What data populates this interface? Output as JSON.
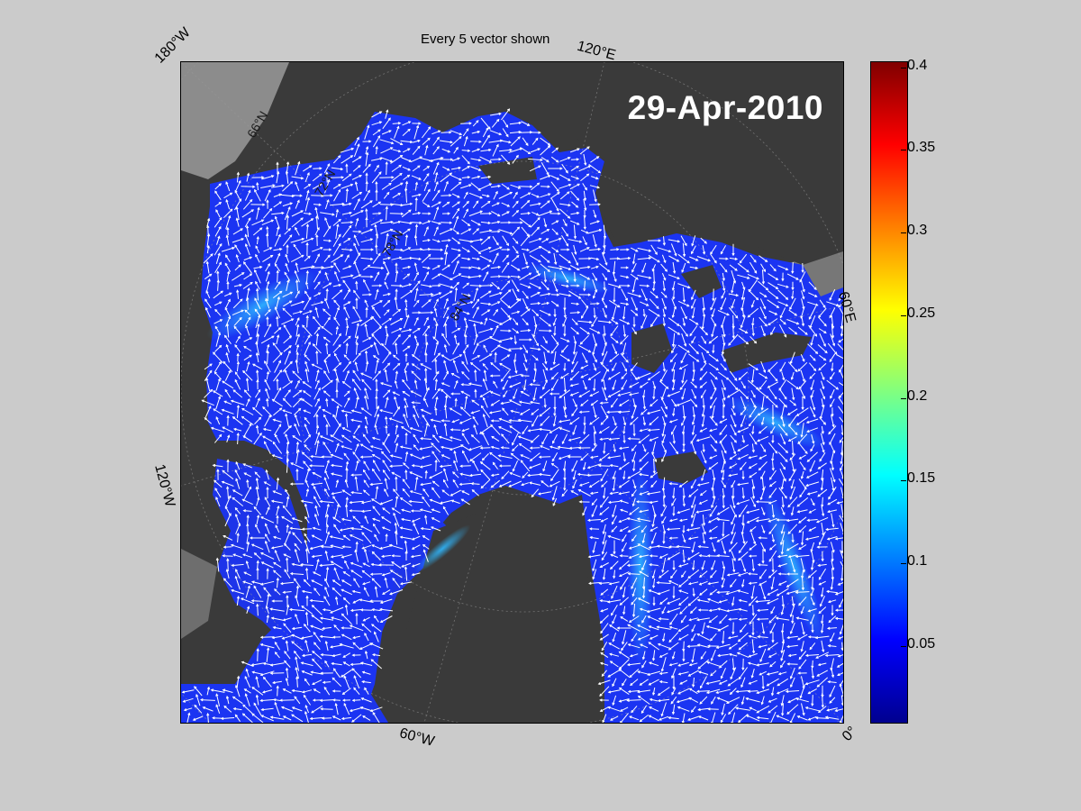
{
  "title": "Every 5 vector shown",
  "date": "29-Apr-2010",
  "rim_labels": {
    "top_left": "180°W",
    "top_right": "120°E",
    "right": "60°E",
    "left": "120°W",
    "bottom": "60°W",
    "bottom_right": "0°"
  },
  "inner_labels": {
    "lat_66": "66°N",
    "lat_72": "72°N",
    "lat_78": "78°N",
    "lat_84": "84°N"
  },
  "colorbar": {
    "ticks": [
      "0.4",
      "0.35",
      "0.3",
      "0.25",
      "0.2",
      "0.15",
      "0.1",
      "0.05"
    ],
    "range": [
      0,
      0.4
    ],
    "colormap": "jet"
  },
  "colors": {
    "background": "#cbcbcb",
    "land": "#3a3a3a",
    "ice_shelf": "#8c8c8c",
    "ocean_low": "#1a2cf0",
    "vector": "#ffffff"
  }
}
